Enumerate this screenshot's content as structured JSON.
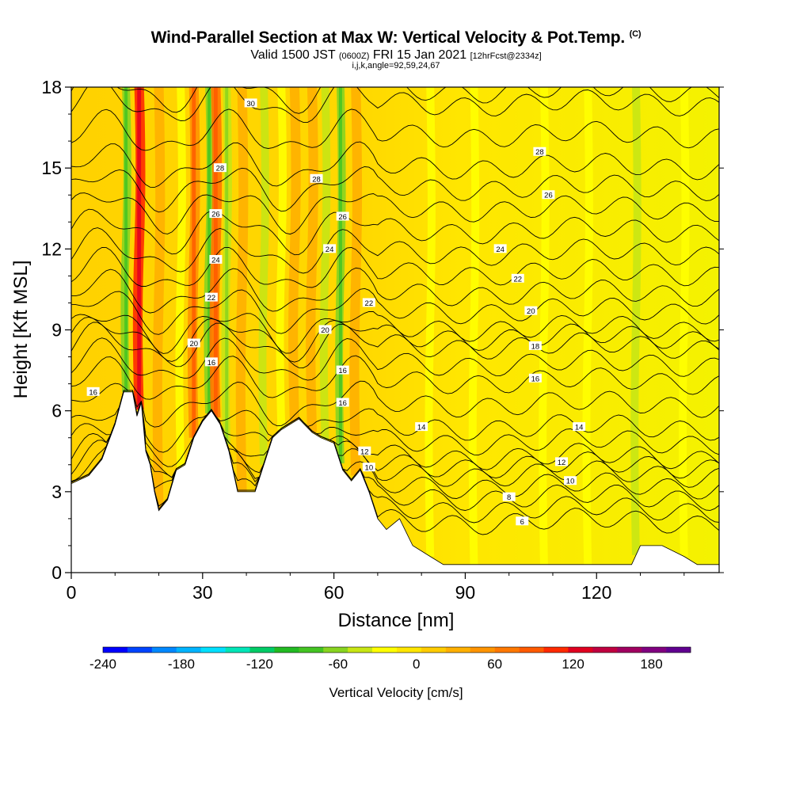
{
  "header": {
    "title": "Wind-Parallel Section at Max W: Vertical Velocity & Pot.Temp.",
    "copyright": "(C)",
    "subtitle_main_a": "Valid 1500 JST",
    "subtitle_small_a": "(0600Z)",
    "subtitle_main_b": "FRI 15 Jan 2021",
    "subtitle_small_b": "[12hrFcst@2334z]",
    "params": "i,j,k,angle=92,59,24,67"
  },
  "chart_data": {
    "type": "heatmap",
    "xlabel": "Distance [nm]",
    "ylabel": "Height [Kft MSL]",
    "xlim": [
      0,
      148
    ],
    "ylim": [
      0,
      18
    ],
    "x_ticks": [
      0,
      30,
      60,
      90,
      120
    ],
    "y_ticks": [
      0,
      3,
      6,
      9,
      12,
      15,
      18
    ],
    "colorbar": {
      "label": "Vertical Velocity [cm/s]",
      "ticks": [
        -240,
        -180,
        -120,
        -60,
        0,
        60,
        120,
        180
      ],
      "range": [
        -240,
        210
      ],
      "colors": [
        "#0000ff",
        "#0044ff",
        "#0088ff",
        "#00b4ff",
        "#00e0ff",
        "#00e6b8",
        "#00cc66",
        "#22bb22",
        "#44c422",
        "#88d420",
        "#c8e614",
        "#ffff00",
        "#ffe600",
        "#ffcc00",
        "#ffb000",
        "#ff9400",
        "#ff7800",
        "#ff5a00",
        "#ff2a00",
        "#e00020",
        "#c00040",
        "#a00060",
        "#800080",
        "#600090"
      ]
    },
    "terrain_kft": [
      [
        0,
        3.3
      ],
      [
        4,
        3.6
      ],
      [
        7,
        4.2
      ],
      [
        10,
        5.5
      ],
      [
        12,
        6.7
      ],
      [
        14,
        6.7
      ],
      [
        15,
        5.8
      ],
      [
        16,
        6.3
      ],
      [
        17,
        4.5
      ],
      [
        18,
        4.0
      ],
      [
        19,
        3.0
      ],
      [
        20,
        2.3
      ],
      [
        22,
        2.7
      ],
      [
        24,
        3.8
      ],
      [
        26,
        4.0
      ],
      [
        28,
        5.0
      ],
      [
        30,
        5.6
      ],
      [
        32,
        6.0
      ],
      [
        34,
        5.5
      ],
      [
        36,
        4.5
      ],
      [
        38,
        3.0
      ],
      [
        42,
        3.0
      ],
      [
        44,
        4.0
      ],
      [
        46,
        5.0
      ],
      [
        48,
        5.3
      ],
      [
        52,
        5.7
      ],
      [
        55,
        5.2
      ],
      [
        57,
        5.0
      ],
      [
        60,
        4.8
      ],
      [
        62,
        3.8
      ],
      [
        64,
        3.4
      ],
      [
        66,
        3.8
      ],
      [
        68,
        3.0
      ],
      [
        70,
        2.0
      ],
      [
        72,
        1.6
      ],
      [
        75,
        2.0
      ],
      [
        78,
        1.0
      ],
      [
        82,
        0.6
      ],
      [
        85,
        0.3
      ],
      [
        95,
        0.3
      ],
      [
        110,
        0.3
      ],
      [
        128,
        0.3
      ],
      [
        130,
        1.0
      ],
      [
        135,
        1.0
      ],
      [
        140,
        0.6
      ],
      [
        143,
        0.3
      ],
      [
        148,
        0.3
      ]
    ],
    "theta_contours": [
      {
        "value": 6,
        "label_x": 103,
        "height_kft": 1.9
      },
      {
        "value": 8,
        "label_x": 100,
        "height_kft": 2.8
      },
      {
        "value": 10,
        "label_x": 68,
        "height_kft": 3.9
      },
      {
        "value": 10,
        "label_x": 114,
        "height_kft": 3.4
      },
      {
        "value": 12,
        "label_x": 67,
        "height_kft": 4.5
      },
      {
        "value": 12,
        "label_x": 112,
        "height_kft": 4.1
      },
      {
        "value": 14,
        "label_x": 80,
        "height_kft": 5.4
      },
      {
        "value": 14,
        "label_x": 116,
        "height_kft": 5.4
      },
      {
        "value": 16,
        "label_x": 5,
        "height_kft": 6.7
      },
      {
        "value": 16,
        "label_x": 32,
        "height_kft": 7.8
      },
      {
        "value": 16,
        "label_x": 62,
        "height_kft": 7.5
      },
      {
        "value": 16,
        "label_x": 62,
        "height_kft": 6.3
      },
      {
        "value": 16,
        "label_x": 106,
        "height_kft": 7.2
      },
      {
        "value": 18,
        "label_x": 106,
        "height_kft": 8.4
      },
      {
        "value": 20,
        "label_x": 28,
        "height_kft": 8.5
      },
      {
        "value": 20,
        "label_x": 58,
        "height_kft": 9.0
      },
      {
        "value": 20,
        "label_x": 105,
        "height_kft": 9.7
      },
      {
        "value": 22,
        "label_x": 32,
        "height_kft": 10.2
      },
      {
        "value": 22,
        "label_x": 68,
        "height_kft": 10.0
      },
      {
        "value": 22,
        "label_x": 102,
        "height_kft": 10.9
      },
      {
        "value": 24,
        "label_x": 33,
        "height_kft": 11.6
      },
      {
        "value": 24,
        "label_x": 59,
        "height_kft": 12.0
      },
      {
        "value": 24,
        "label_x": 98,
        "height_kft": 12.0
      },
      {
        "value": 26,
        "label_x": 33,
        "height_kft": 13.3
      },
      {
        "value": 26,
        "label_x": 62,
        "height_kft": 13.2
      },
      {
        "value": 26,
        "label_x": 109,
        "height_kft": 14.0
      },
      {
        "value": 28,
        "label_x": 34,
        "height_kft": 15.0
      },
      {
        "value": 28,
        "label_x": 56,
        "height_kft": 14.6
      },
      {
        "value": 28,
        "label_x": 107,
        "height_kft": 15.6
      },
      {
        "value": 30,
        "label_x": 41,
        "height_kft": 17.4
      }
    ],
    "vertical_velocity_features": [
      {
        "x": 12.5,
        "w_cm_s": -60,
        "type": "downdraft"
      },
      {
        "x": 15.5,
        "w_cm_s": 100,
        "type": "updraft"
      },
      {
        "x": 20,
        "w_cm_s": 40,
        "type": "updraft"
      },
      {
        "x": 25,
        "w_cm_s": -30,
        "type": "downdraft"
      },
      {
        "x": 28,
        "w_cm_s": 50,
        "type": "updraft"
      },
      {
        "x": 31.5,
        "w_cm_s": -60,
        "type": "downdraft"
      },
      {
        "x": 33,
        "w_cm_s": 60,
        "type": "updraft"
      },
      {
        "x": 35.5,
        "w_cm_s": -50,
        "type": "downdraft"
      },
      {
        "x": 39,
        "w_cm_s": 40,
        "type": "updraft"
      },
      {
        "x": 44,
        "w_cm_s": -40,
        "type": "downdraft"
      },
      {
        "x": 48,
        "w_cm_s": -30,
        "type": "downdraft"
      },
      {
        "x": 51,
        "w_cm_s": 40,
        "type": "updraft"
      },
      {
        "x": 55,
        "w_cm_s": 30,
        "type": "updraft"
      },
      {
        "x": 58,
        "w_cm_s": -40,
        "type": "downdraft"
      },
      {
        "x": 61.5,
        "w_cm_s": -60,
        "type": "downdraft"
      },
      {
        "x": 65,
        "w_cm_s": 30,
        "type": "updraft"
      },
      {
        "x": 82,
        "w_cm_s": -20,
        "type": "downdraft"
      },
      {
        "x": 92,
        "w_cm_s": -20,
        "type": "downdraft"
      },
      {
        "x": 108,
        "w_cm_s": -20,
        "type": "downdraft"
      },
      {
        "x": 118,
        "w_cm_s": -20,
        "type": "downdraft"
      },
      {
        "x": 129,
        "w_cm_s": -40,
        "type": "downdraft"
      },
      {
        "x": 140,
        "w_cm_s": -20,
        "type": "downdraft"
      }
    ]
  }
}
